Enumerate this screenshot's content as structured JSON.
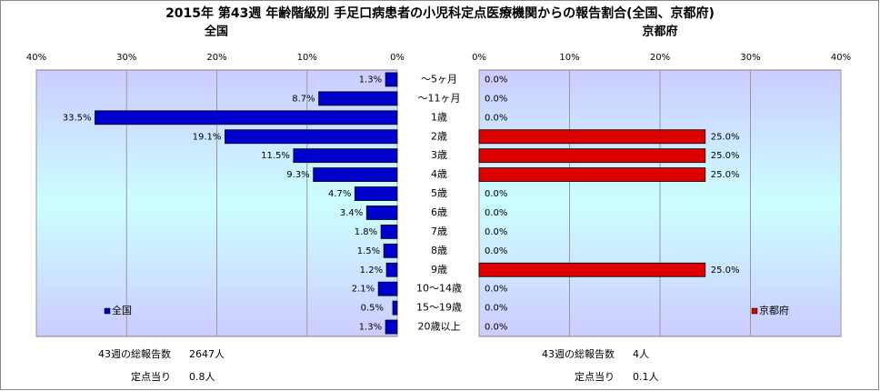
{
  "title": "2015年 第43週 年齢階級別 手足口病患者の小児科定点医療機関からの報告割合(全国、京都府)",
  "chart_data": [
    {
      "type": "bar",
      "title": "全国",
      "direction": "left",
      "categories": [
        "～5ヶ月",
        "～11ヶ月",
        "1歳",
        "2歳",
        "3歳",
        "4歳",
        "5歳",
        "6歳",
        "7歳",
        "8歳",
        "9歳",
        "10～14歳",
        "15～19歳",
        "20歳以上"
      ],
      "series": [
        {
          "name": "全国",
          "color": "#0000cc",
          "values": [
            1.3,
            8.7,
            33.5,
            19.1,
            11.5,
            9.3,
            4.7,
            3.4,
            1.8,
            1.5,
            1.2,
            2.1,
            0.5,
            1.3
          ],
          "value_labels": [
            "1.3%",
            "8.7%",
            "33.5%",
            "19.1%",
            "11.5%",
            "9.3%",
            "4.7%",
            "3.4%",
            "1.8%",
            "1.5%",
            "1.2%",
            "2.1%",
            "0.5%",
            "1.3%"
          ]
        }
      ],
      "xlim": [
        0,
        40
      ],
      "xticks": [
        {
          "value": 0,
          "label": "0%"
        },
        {
          "value": 10,
          "label": "10%"
        },
        {
          "value": 20,
          "label": "20%"
        },
        {
          "value": 30,
          "label": "30%"
        },
        {
          "value": 40,
          "label": "40%"
        }
      ],
      "grid": true,
      "legend": "lower left",
      "notes": {
        "total_label": "43週の総報告数",
        "total": "2647人",
        "per_label": "定点当り",
        "per": "0.8人"
      }
    },
    {
      "type": "bar",
      "title": "京都府",
      "direction": "right",
      "series": [
        {
          "name": "京都府",
          "color": "#dd0000",
          "values": [
            0,
            0,
            0,
            25,
            25,
            25,
            0,
            0,
            0,
            0,
            25,
            0,
            0,
            0
          ],
          "value_labels": [
            "0.0%",
            "0.0%",
            "0.0%",
            "25.0%",
            "25.0%",
            "25.0%",
            "0.0%",
            "0.0%",
            "0.0%",
            "0.0%",
            "25.0%",
            "0.0%",
            "0.0%",
            "0.0%"
          ]
        }
      ],
      "xlim": [
        0,
        40
      ],
      "xticks": [
        {
          "value": 0,
          "label": "0%"
        },
        {
          "value": 10,
          "label": "10%"
        },
        {
          "value": 20,
          "label": "20%"
        },
        {
          "value": 30,
          "label": "30%"
        },
        {
          "value": 40,
          "label": "40%"
        }
      ],
      "grid": true,
      "legend": "lower right",
      "notes": {
        "total_label": "43週の総報告数",
        "total": "4人",
        "per_label": "定点当り",
        "per": "0.1人"
      }
    }
  ]
}
